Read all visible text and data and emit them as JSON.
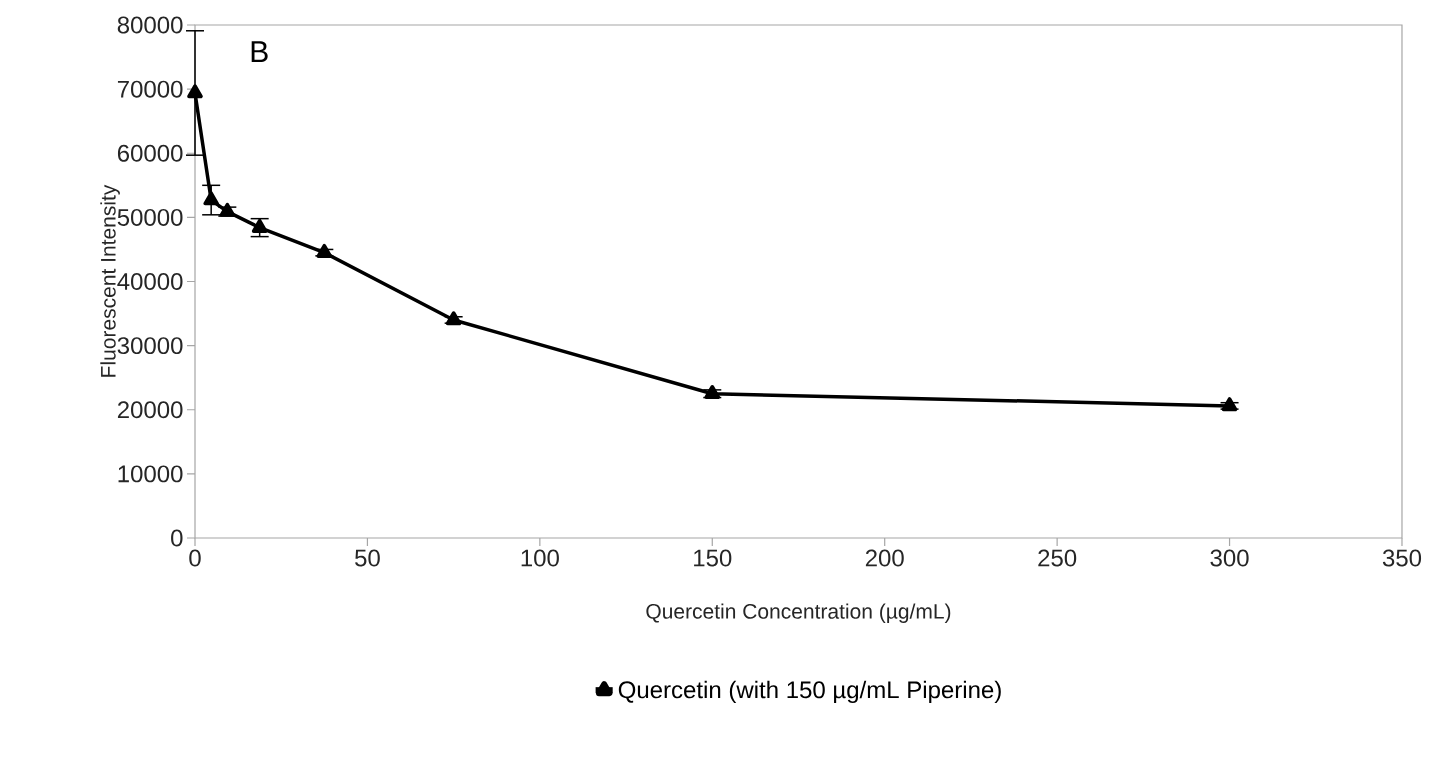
{
  "chart_data": {
    "type": "line",
    "xlabel": "Quercetin Concentration (µg/mL)",
    "ylabel": "Fluorescent Intensity",
    "annotations": [
      "B"
    ],
    "x": [
      0,
      4.6875,
      9.375,
      18.75,
      37.5,
      75,
      150,
      300
    ],
    "series": [
      {
        "name": "Quercetin (with 150 µg/mL Piperine)",
        "color": "#000000",
        "values": [
          69400,
          52700,
          50900,
          48400,
          44500,
          34000,
          22500,
          20600
        ],
        "errors": [
          9700,
          2300,
          700,
          1400,
          500,
          500,
          600,
          500
        ]
      }
    ],
    "xlim": [
      0,
      350
    ],
    "xticks": [
      0,
      50,
      100,
      150,
      200,
      250,
      300,
      350
    ],
    "ylim": [
      0,
      80000
    ],
    "yticks": [
      0,
      10000,
      20000,
      30000,
      40000,
      50000,
      60000,
      70000,
      80000
    ],
    "grid": false,
    "legend": "bottom",
    "marker": "triangle",
    "line_style": "solid"
  }
}
